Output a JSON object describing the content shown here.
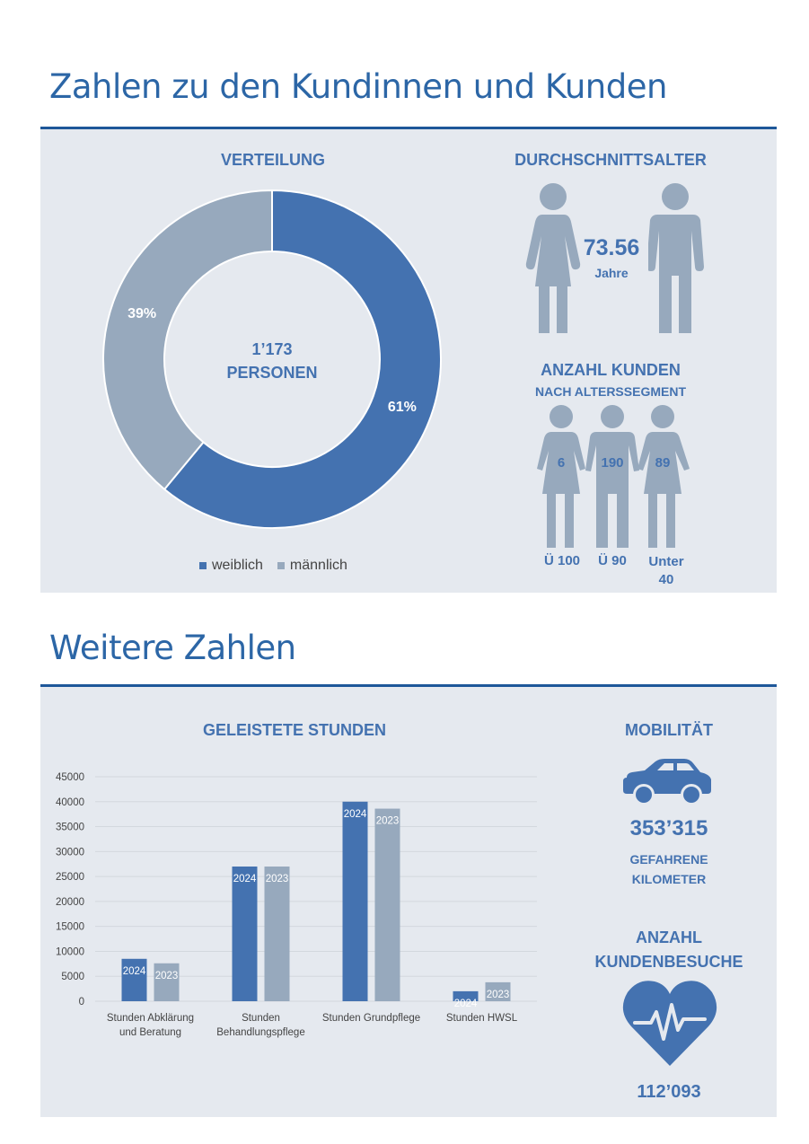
{
  "section1": {
    "heading": "Zahlen zu den Kundinnen und Kunden",
    "verteilung_title": "VERTEILUNG",
    "center_line1": "1’173",
    "center_line2": "PERSONEN",
    "legend": [
      {
        "label": "weiblich",
        "color": "#4472b0"
      },
      {
        "label": "männlich",
        "color": "#97a9bd"
      }
    ],
    "avg_age": {
      "title": "DURCHSCHNITTSALTER",
      "value": "73.56",
      "unit": "Jahre"
    },
    "segments": {
      "title": "ANZAHL KUNDEN",
      "subtitle": "NACH ALTERSSEGMENT",
      "items": [
        {
          "value": "6",
          "label": "Ü 100"
        },
        {
          "value": "190",
          "label": "Ü 90"
        },
        {
          "value": "89",
          "label": "Unter 40"
        }
      ]
    }
  },
  "section2": {
    "heading": "Weitere Zahlen",
    "hours_title": "GELEISTETE STUNDEN",
    "mobility": {
      "title": "MOBILITÄT",
      "value": "353’315",
      "line1": "GEFAHRENE",
      "line2": "KILOMETER"
    },
    "visits": {
      "title1": "ANZAHL",
      "title2": "KUNDENBESUCHE",
      "value": "112’093"
    }
  },
  "chart_data": [
    {
      "type": "pie",
      "categories": [
        "weiblich",
        "männlich"
      ],
      "values": [
        61,
        39
      ],
      "labels": [
        "61%",
        "39%"
      ],
      "colors": [
        "#4472b0",
        "#97a9bd"
      ]
    },
    {
      "type": "bar",
      "title": "GELEISTETE STUNDEN",
      "categories": [
        [
          "Stunden Abklärung",
          "und Beratung"
        ],
        [
          "Stunden",
          "Behandlungspflege"
        ],
        [
          "Stunden Grundpflege"
        ],
        [
          "Stunden HWSL"
        ]
      ],
      "series": [
        {
          "name": "2024",
          "values": [
            8500,
            27000,
            40000,
            2000
          ],
          "color": "#4472b0"
        },
        {
          "name": "2023",
          "values": [
            7600,
            27000,
            38600,
            3800
          ],
          "color": "#97a9bd"
        }
      ],
      "ylim": [
        0,
        45000
      ],
      "yticks": [
        0,
        5000,
        10000,
        15000,
        20000,
        25000,
        30000,
        35000,
        40000,
        45000
      ],
      "grid": true
    }
  ]
}
